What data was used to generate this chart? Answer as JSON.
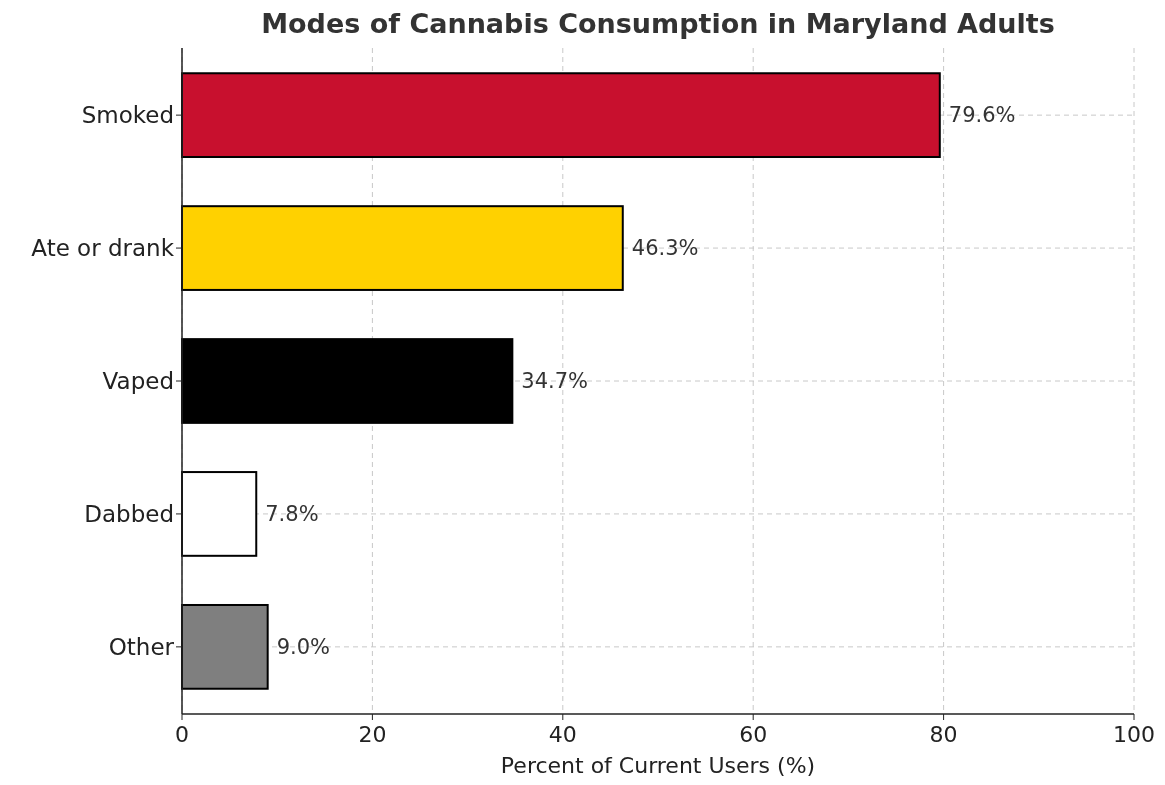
{
  "chart_data": {
    "type": "bar",
    "orientation": "horizontal",
    "title": "Modes of Cannabis Consumption in Maryland Adults",
    "xlabel": "Percent of Current Users (%)",
    "categories": [
      "Smoked",
      "Ate or drank",
      "Vaped",
      "Dabbed",
      "Other"
    ],
    "values": [
      79.6,
      46.3,
      34.7,
      7.8,
      9.0
    ],
    "colors": [
      "#c8102e",
      "#ffd100",
      "#000000",
      "#ffffff",
      "#7f7f7f"
    ],
    "value_labels": [
      "79.6%",
      "46.3%",
      "34.7%",
      "7.8%",
      "9.0%"
    ],
    "xlim": [
      0,
      100
    ],
    "xticks": [
      0,
      20,
      40,
      60,
      80,
      100
    ],
    "grid": true
  }
}
